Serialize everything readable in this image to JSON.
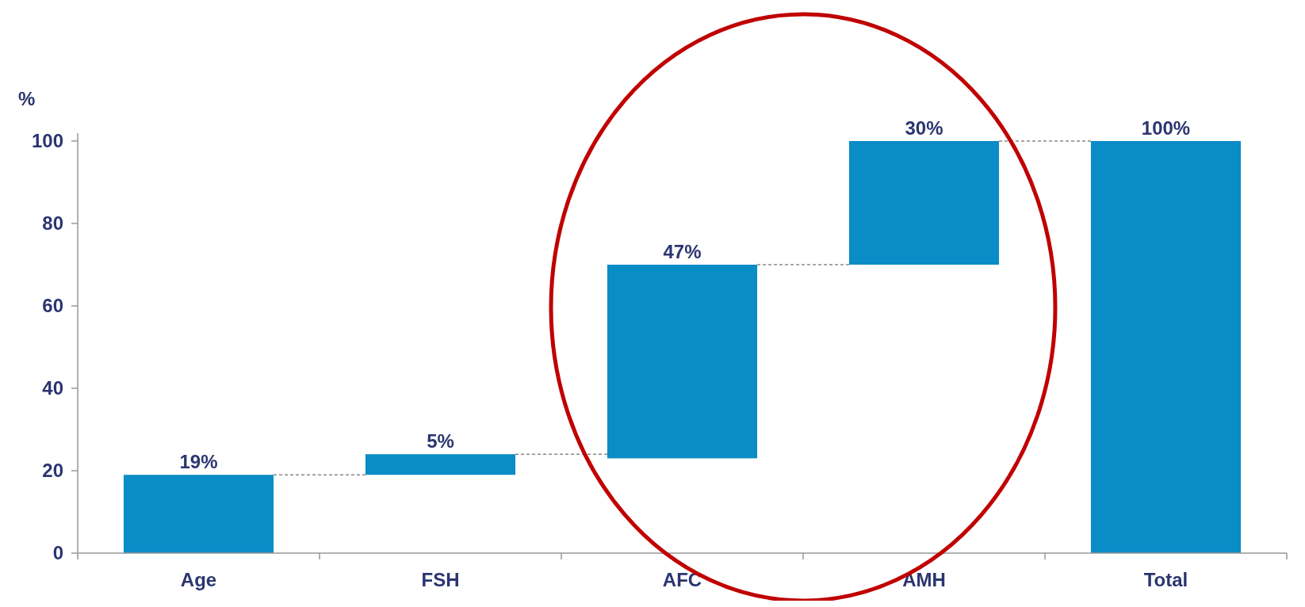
{
  "chart_data": {
    "type": "bar",
    "ylabel": "%",
    "categories": [
      "Age",
      "FSH",
      "AFC",
      "AMH",
      "Total"
    ],
    "values": [
      19,
      5,
      47,
      30,
      100
    ],
    "base": [
      0,
      19,
      23,
      70,
      0
    ],
    "value_labels": [
      "19%",
      "5%",
      "47%",
      "30%",
      "100%"
    ],
    "color": "#0a8cc6",
    "ylim": [
      0,
      100
    ],
    "yticks": [
      0,
      20,
      40,
      60,
      80,
      100
    ],
    "grid": false
  }
}
